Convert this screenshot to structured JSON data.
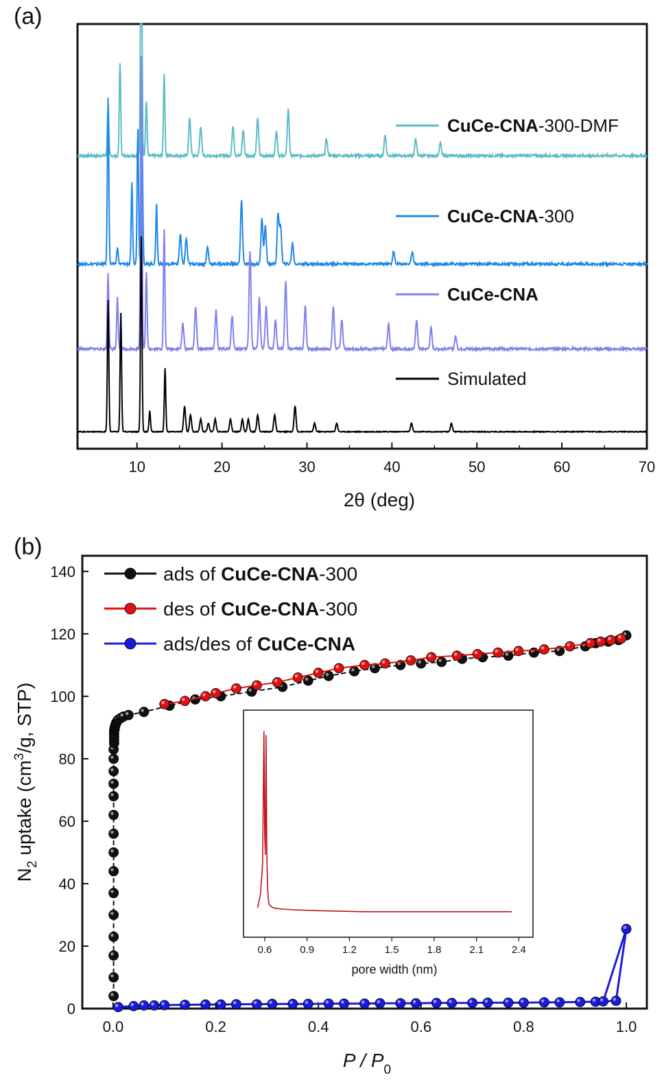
{
  "chart_data": [
    {
      "panel": "(a)",
      "type": "line",
      "xlabel": "2θ (deg)",
      "xlim": [
        3,
        70
      ],
      "x_ticks": [
        10,
        20,
        30,
        40,
        50,
        60,
        70
      ],
      "y_ticks_shown": false,
      "legend_position": "right, beside each trace",
      "series": [
        {
          "name": "CuCe-CNA-300-DMF",
          "name_bold": "CuCe-CNA",
          "name_suffix": "-300-DMF",
          "color": "#5bbcc6",
          "baseline": 0.69,
          "peaks": [
            [
              6.6,
              0.12
            ],
            [
              8.0,
              0.22
            ],
            [
              10.5,
              0.77
            ],
            [
              11.1,
              0.13
            ],
            [
              13.2,
              0.19
            ],
            [
              16.2,
              0.09
            ],
            [
              17.5,
              0.07
            ],
            [
              21.3,
              0.07
            ],
            [
              22.5,
              0.06
            ],
            [
              24.2,
              0.09
            ],
            [
              26.4,
              0.06
            ],
            [
              27.8,
              0.11
            ],
            [
              32.3,
              0.04
            ],
            [
              39.2,
              0.05
            ],
            [
              42.8,
              0.04
            ],
            [
              45.7,
              0.03
            ]
          ]
        },
        {
          "name": "CuCe-CNA-300",
          "name_bold": "CuCe-CNA",
          "name_suffix": "-300",
          "color": "#1e87e8",
          "baseline": 0.435,
          "peaks": [
            [
              6.6,
              0.39
            ],
            [
              7.7,
              0.04
            ],
            [
              9.4,
              0.19
            ],
            [
              10.1,
              0.32
            ],
            [
              10.6,
              0.28
            ],
            [
              12.3,
              0.14
            ],
            [
              15.1,
              0.07
            ],
            [
              15.8,
              0.06
            ],
            [
              18.3,
              0.04
            ],
            [
              22.3,
              0.15
            ],
            [
              24.7,
              0.11
            ],
            [
              25.1,
              0.09
            ],
            [
              26.6,
              0.12
            ],
            [
              26.9,
              0.09
            ],
            [
              28.3,
              0.05
            ],
            [
              40.2,
              0.03
            ],
            [
              42.4,
              0.03
            ]
          ]
        },
        {
          "name": "CuCe-CNA",
          "name_bold": "CuCe-CNA",
          "name_suffix": "",
          "color": "#8080ee",
          "baseline": 0.235,
          "peaks": [
            [
              6.6,
              0.18
            ],
            [
              7.7,
              0.12
            ],
            [
              10.5,
              0.69
            ],
            [
              11.1,
              0.18
            ],
            [
              13.2,
              0.28
            ],
            [
              15.4,
              0.06
            ],
            [
              16.9,
              0.1
            ],
            [
              19.3,
              0.09
            ],
            [
              21.2,
              0.08
            ],
            [
              23.3,
              0.23
            ],
            [
              24.4,
              0.12
            ],
            [
              25.2,
              0.1
            ],
            [
              26.3,
              0.07
            ],
            [
              27.5,
              0.16
            ],
            [
              29.8,
              0.1
            ],
            [
              33.1,
              0.1
            ],
            [
              34.1,
              0.07
            ],
            [
              39.6,
              0.06
            ],
            [
              42.9,
              0.07
            ],
            [
              44.6,
              0.05
            ],
            [
              47.5,
              0.03
            ]
          ]
        },
        {
          "name": "Simulated",
          "name_bold": "",
          "name_suffix": "Simulated",
          "color": "#000000",
          "baseline": 0.04,
          "peaks": [
            [
              6.6,
              0.31
            ],
            [
              8.1,
              0.28
            ],
            [
              10.5,
              0.46
            ],
            [
              11.5,
              0.05
            ],
            [
              13.3,
              0.15
            ],
            [
              15.6,
              0.06
            ],
            [
              16.3,
              0.04
            ],
            [
              17.5,
              0.03
            ],
            [
              18.4,
              0.02
            ],
            [
              19.2,
              0.03
            ],
            [
              21.0,
              0.03
            ],
            [
              22.4,
              0.03
            ],
            [
              23.1,
              0.03
            ],
            [
              24.2,
              0.04
            ],
            [
              26.2,
              0.04
            ],
            [
              28.6,
              0.06
            ],
            [
              30.9,
              0.02
            ],
            [
              33.5,
              0.02
            ],
            [
              42.3,
              0.02
            ],
            [
              47.0,
              0.02
            ]
          ]
        }
      ]
    },
    {
      "panel": "(b)",
      "type": "scatter",
      "xlabel": "P / P0",
      "xlabel_main": "P / P",
      "xlabel_sub": "0",
      "ylabel": "N2 uptake (cm3/g, STP)",
      "ylabel_pre": "N",
      "ylabel_sub": "2",
      "ylabel_mid": " uptake (cm",
      "ylabel_sup": "3",
      "ylabel_post": "/g, STP)",
      "xlim": [
        -0.06,
        1.04
      ],
      "ylim": [
        0,
        145
      ],
      "x_ticks": [
        "0.0",
        "0.2",
        "0.4",
        "0.6",
        "0.8",
        "1.0"
      ],
      "y_ticks": [
        "0",
        "20",
        "40",
        "60",
        "80",
        "100",
        "120",
        "140"
      ],
      "legend_position": "top-left",
      "series": [
        {
          "name": "ads of CuCe-CNA-300",
          "prefix": "ads of ",
          "bold": "CuCe-CNA",
          "suffix": "-300",
          "color": "#111111",
          "x": [
            0.001,
            0.001,
            0.001,
            0.001,
            0.001,
            0.001,
            0.001,
            0.001,
            0.001,
            0.001,
            0.001,
            0.001,
            0.001,
            0.001,
            0.001,
            0.002,
            0.002,
            0.002,
            0.002,
            0.002,
            0.003,
            0.003,
            0.004,
            0.005,
            0.006,
            0.008,
            0.01,
            0.015,
            0.02,
            0.03,
            0.06,
            0.11,
            0.16,
            0.21,
            0.27,
            0.33,
            0.38,
            0.42,
            0.47,
            0.51,
            0.56,
            0.6,
            0.64,
            0.68,
            0.72,
            0.77,
            0.82,
            0.87,
            0.92,
            0.94,
            0.965,
            0.985,
            1.0
          ],
          "y": [
            4,
            10,
            17,
            23,
            30,
            37,
            44,
            50,
            56,
            62,
            68,
            72,
            76,
            80,
            83,
            85,
            86,
            87,
            88,
            89,
            89.5,
            90,
            90.5,
            91,
            91.5,
            92,
            92.5,
            93,
            93.5,
            94,
            95,
            97,
            99,
            100,
            101.5,
            103,
            105,
            106.5,
            108,
            109,
            110,
            110.5,
            111,
            112,
            112.5,
            113,
            114,
            114.5,
            116,
            117,
            117.5,
            118,
            119.5
          ]
        },
        {
          "name": "des of CuCe-CNA-300",
          "prefix": "des of ",
          "bold": "CuCe-CNA",
          "suffix": "-300",
          "color": "#e01010",
          "x": [
            0.1,
            0.14,
            0.18,
            0.2,
            0.24,
            0.28,
            0.32,
            0.36,
            0.4,
            0.44,
            0.49,
            0.53,
            0.58,
            0.62,
            0.67,
            0.71,
            0.75,
            0.79,
            0.84,
            0.89,
            0.93,
            0.95,
            0.97,
            0.99
          ],
          "y": [
            97.5,
            98.5,
            100,
            101,
            102.5,
            103.5,
            104.5,
            106,
            107.5,
            109,
            110,
            110.5,
            111.5,
            112.5,
            113,
            113.5,
            114,
            114.5,
            115,
            116,
            117,
            117.5,
            118,
            118.5
          ]
        },
        {
          "name": "ads/des of CuCe-CNA",
          "prefix": "ads/des of ",
          "bold": "CuCe-CNA",
          "suffix": "",
          "color": "#1a1adc",
          "x": [
            0.01,
            0.04,
            0.06,
            0.08,
            0.1,
            0.14,
            0.18,
            0.21,
            0.24,
            0.28,
            0.31,
            0.35,
            0.38,
            0.42,
            0.45,
            0.49,
            0.52,
            0.56,
            0.59,
            0.63,
            0.66,
            0.7,
            0.73,
            0.77,
            0.8,
            0.84,
            0.87,
            0.91,
            0.94,
            0.955,
            0.98,
            1.0
          ],
          "y": [
            0.5,
            0.8,
            1,
            1,
            1.1,
            1.2,
            1.3,
            1.3,
            1.4,
            1.4,
            1.5,
            1.5,
            1.5,
            1.6,
            1.6,
            1.6,
            1.7,
            1.7,
            1.7,
            1.8,
            1.8,
            1.8,
            1.9,
            1.9,
            1.9,
            2,
            2,
            2.1,
            2.2,
            2.3,
            2.5,
            25.5
          ],
          "closing_segment": [
            [
              0.955,
              2.3
            ],
            [
              1.0,
              25.5
            ]
          ]
        }
      ],
      "inset": {
        "type": "line",
        "xlabel": "pore width (nm)",
        "x_ticks": [
          "0.6",
          "0.9",
          "1.2",
          "1.5",
          "1.8",
          "2.1",
          "2.4"
        ],
        "xlim": [
          0.45,
          2.5
        ],
        "ylim": [
          0,
          1
        ],
        "color": "#c0101a",
        "x": [
          0.55,
          0.57,
          0.585,
          0.595,
          0.6,
          0.605,
          0.61,
          0.615,
          0.62,
          0.625,
          0.63,
          0.64,
          0.66,
          0.7,
          0.8,
          1.0,
          1.3,
          1.6,
          1.9,
          2.2,
          2.35
        ],
        "y": [
          0.08,
          0.15,
          0.3,
          0.98,
          0.45,
          0.35,
          0.96,
          0.35,
          0.2,
          0.13,
          0.1,
          0.09,
          0.08,
          0.075,
          0.07,
          0.065,
          0.06,
          0.06,
          0.06,
          0.06,
          0.06
        ]
      }
    }
  ]
}
